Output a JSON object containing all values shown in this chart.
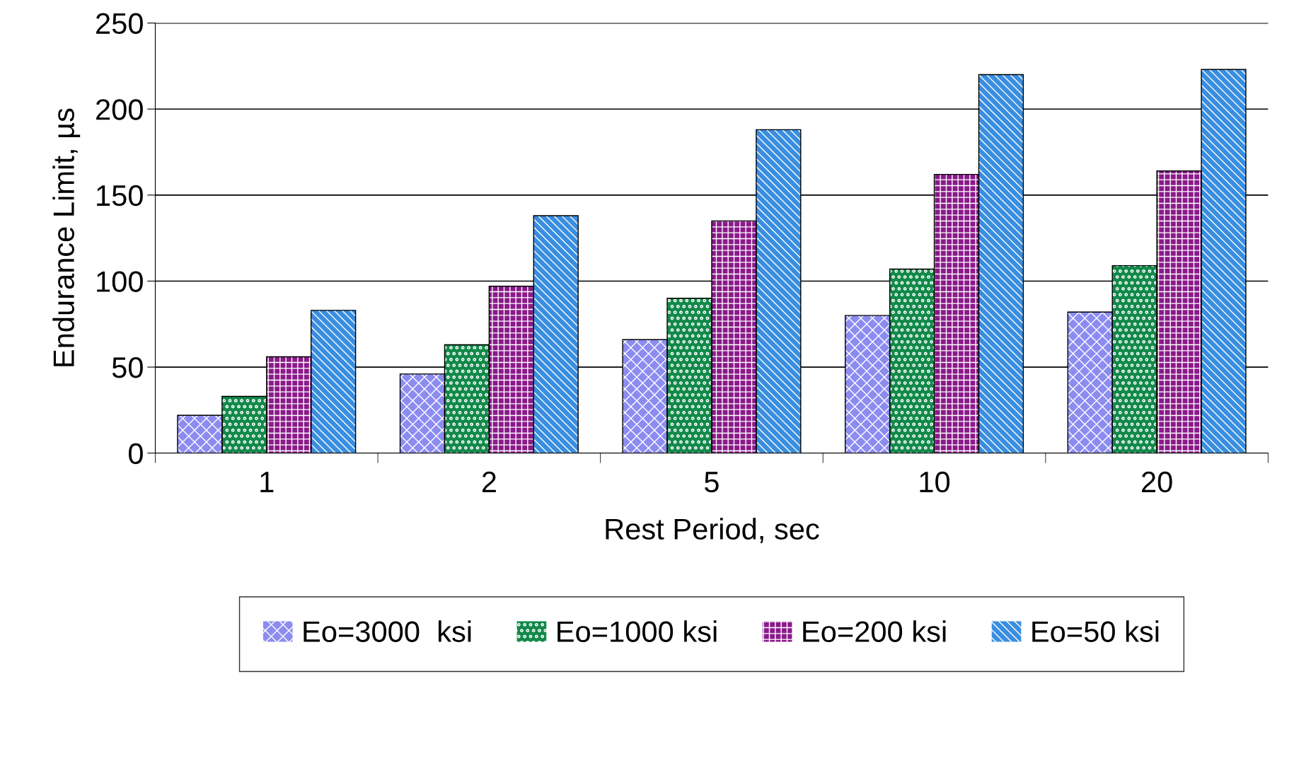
{
  "chart_data": {
    "type": "bar",
    "xlabel": "Rest Period, sec",
    "ylabel": "Endurance Limit, µs",
    "categories": [
      "1",
      "2",
      "5",
      "10",
      "20"
    ],
    "series": [
      {
        "name": "Eo=3000  ksi",
        "color": "#8c8cf0",
        "values": [
          22,
          46,
          66,
          80,
          82
        ]
      },
      {
        "name": "Eo=1000 ksi",
        "color": "#12894a",
        "values": [
          33,
          63,
          90,
          107,
          109
        ]
      },
      {
        "name": "Eo=200 ksi",
        "color": "#8a1a8a",
        "values": [
          56,
          97,
          135,
          162,
          164
        ]
      },
      {
        "name": "Eo=50 ksi",
        "color": "#3a8ee0",
        "values": [
          83,
          138,
          188,
          220,
          223
        ]
      }
    ],
    "ylim": [
      0,
      250
    ],
    "yticks": [
      0,
      50,
      100,
      150,
      200,
      250
    ],
    "grid": "y",
    "legend": "bottom"
  }
}
